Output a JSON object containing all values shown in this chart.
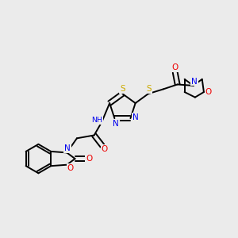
{
  "bg_color": "#ebebeb",
  "atom_colors": {
    "C": "#000000",
    "N": "#0000ee",
    "O": "#ee0000",
    "S": "#ccaa00",
    "H": "#008888"
  },
  "bond_color": "#000000",
  "bond_lw": 1.4
}
